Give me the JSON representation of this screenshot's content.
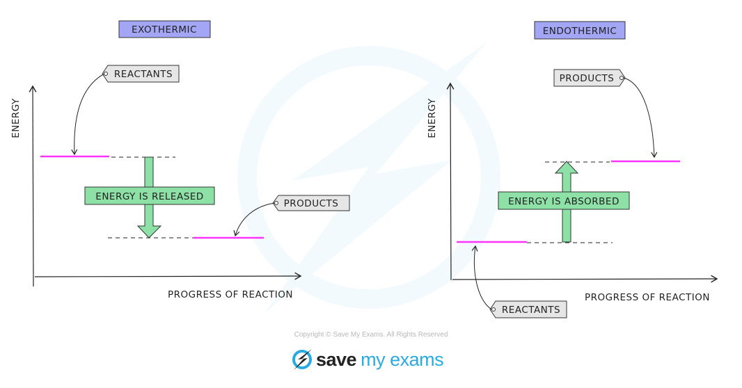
{
  "exothermic": {
    "title": "EXOTHERMIC",
    "y_axis_label": "ENERGY",
    "x_axis_label": "PROGRESS OF REACTION",
    "reactants_label": "REACTANTS",
    "products_label": "PRODUCTS",
    "arrow_label": "ENERGY IS RELEASED"
  },
  "endothermic": {
    "title": "ENDOTHERMIC",
    "y_axis_label": "ENERGY",
    "x_axis_label": "PROGRESS OF REACTION",
    "reactants_label": "REACTANTS",
    "products_label": "PRODUCTS",
    "arrow_label": "ENERGY IS ABSORBED"
  },
  "footer": {
    "copyright": "Copyright © Save My Exams. All Rights Reserved",
    "logo_save": "save",
    "logo_myexams": "my exams"
  },
  "colors": {
    "title_box": "#a3a6f5",
    "energy_level": "#ff33ff",
    "arrow": "#8de0a6",
    "tag": "#e6e6e6",
    "brand_blue": "#29abe2"
  }
}
